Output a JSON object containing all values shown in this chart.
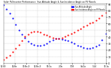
{
  "title": "Solar PV/Inverter Performance  Sun Altitude Angle & Sun Incidence Angle on PV Panels",
  "bg_color": "#ffffff",
  "plot_bg_color": "#ffffff",
  "grid_color": "#aaaaaa",
  "text_color": "#000000",
  "legend_entries": [
    "Sun Altitude Angle",
    "Sun Incidence Angle on PV Panels"
  ],
  "legend_colors": [
    "#0000ff",
    "#ff0000"
  ],
  "ylim": [
    0,
    90
  ],
  "yticks": [
    0,
    10,
    20,
    30,
    40,
    50,
    60,
    70,
    80,
    90
  ],
  "xlim": [
    0,
    100
  ],
  "altitude_x": [
    0,
    3,
    6,
    9,
    12,
    15,
    18,
    21,
    24,
    27,
    30,
    33,
    36,
    39,
    42,
    45,
    48,
    51,
    54,
    57,
    60,
    63,
    66,
    69,
    72,
    75,
    78,
    81,
    84,
    87,
    90,
    93,
    96,
    100
  ],
  "altitude_y": [
    88,
    82,
    75,
    68,
    58,
    50,
    43,
    38,
    33,
    30,
    28,
    27,
    27,
    28,
    30,
    33,
    35,
    37,
    37,
    36,
    35,
    34,
    32,
    30,
    27,
    25,
    23,
    22,
    22,
    23,
    25,
    28,
    35,
    45
  ],
  "incidence_x": [
    0,
    3,
    6,
    9,
    12,
    15,
    18,
    21,
    24,
    27,
    30,
    33,
    36,
    39,
    42,
    45,
    48,
    51,
    54,
    57,
    60,
    63,
    66,
    69,
    72,
    75,
    78,
    81,
    84,
    87,
    90,
    93,
    96,
    100
  ],
  "incidence_y": [
    5,
    8,
    12,
    17,
    22,
    28,
    34,
    40,
    44,
    47,
    48,
    48,
    47,
    44,
    42,
    40,
    38,
    37,
    37,
    38,
    40,
    42,
    45,
    47,
    50,
    52,
    55,
    57,
    60,
    62,
    65,
    68,
    72,
    76
  ]
}
